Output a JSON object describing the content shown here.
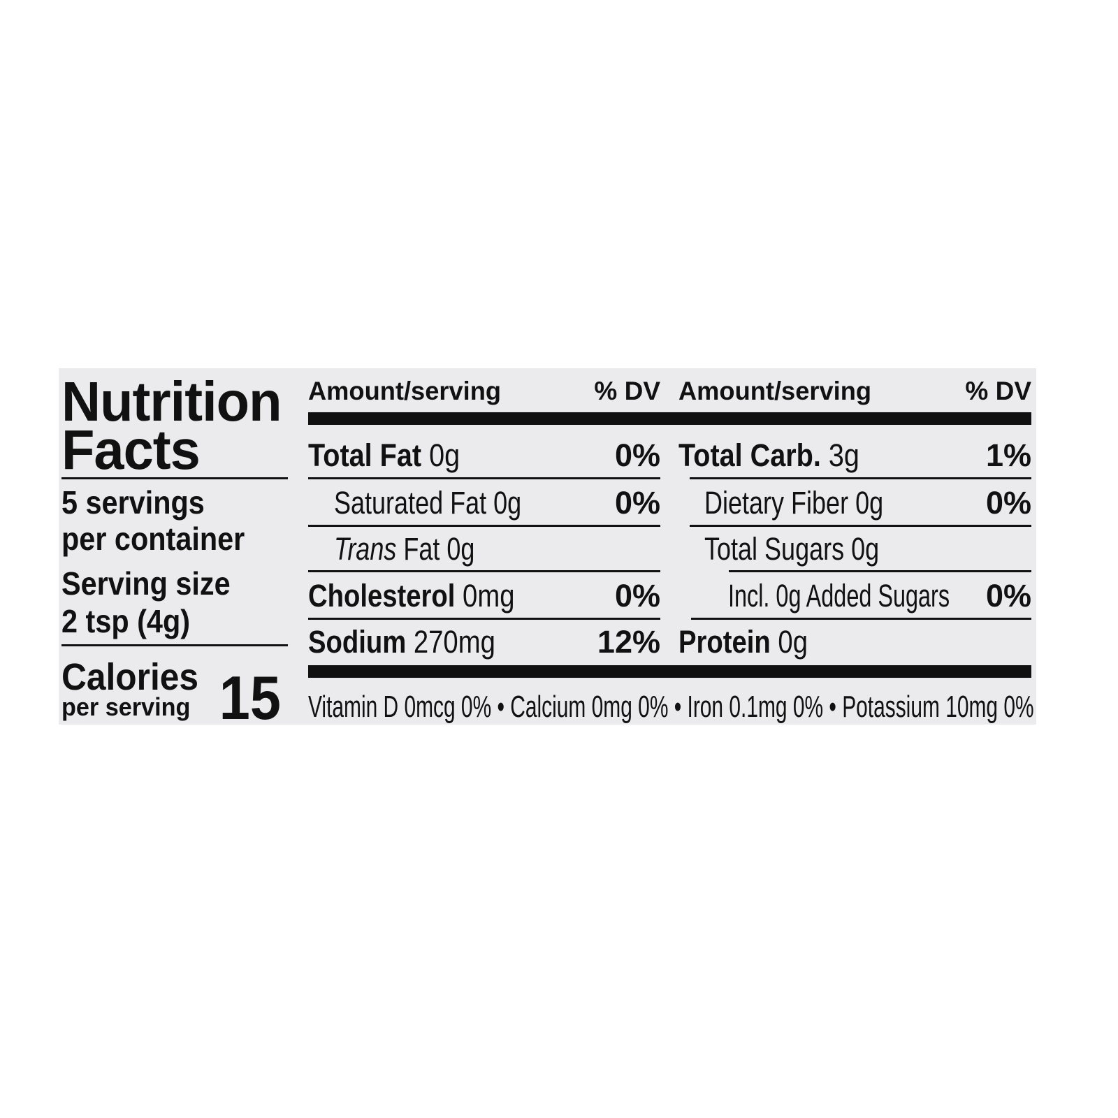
{
  "title_line1": "Nutrition",
  "title_line2": "Facts",
  "servings_line1": "5 servings",
  "servings_line2": "per container",
  "serving_size_label": "Serving size",
  "serving_size_value": "2 tsp (4g)",
  "calories_label": "Calories",
  "calories_sub": "per serving",
  "calories_value": "15",
  "header": {
    "amount": "Amount/serving",
    "dv": "% DV"
  },
  "left_rows": [
    {
      "name": "Total Fat",
      "amount": "0g",
      "dv": "0%"
    },
    {
      "name": "Saturated Fat",
      "amount": "0g",
      "dv": "0%"
    },
    {
      "name": "Trans",
      "name_rest": "Fat",
      "amount": "0g",
      "dv": ""
    },
    {
      "name": "Cholesterol",
      "amount": "0mg",
      "dv": "0%"
    },
    {
      "name": "Sodium",
      "amount": "270mg",
      "dv": "12%"
    }
  ],
  "right_rows": [
    {
      "name": "Total Carb.",
      "amount": "3g",
      "dv": "1%"
    },
    {
      "name": "Dietary Fiber",
      "amount": "0g",
      "dv": "0%"
    },
    {
      "name": "Total Sugars",
      "amount": "0g",
      "dv": ""
    },
    {
      "name": "Incl. 0g Added Sugars",
      "amount": "",
      "dv": "0%"
    },
    {
      "name": "Protein",
      "amount": "0g",
      "dv": ""
    }
  ],
  "footer": "Vitamin D 0mcg 0% • Calcium 0mg 0% • Iron 0.1mg 0% • Potassium 10mg 0%"
}
